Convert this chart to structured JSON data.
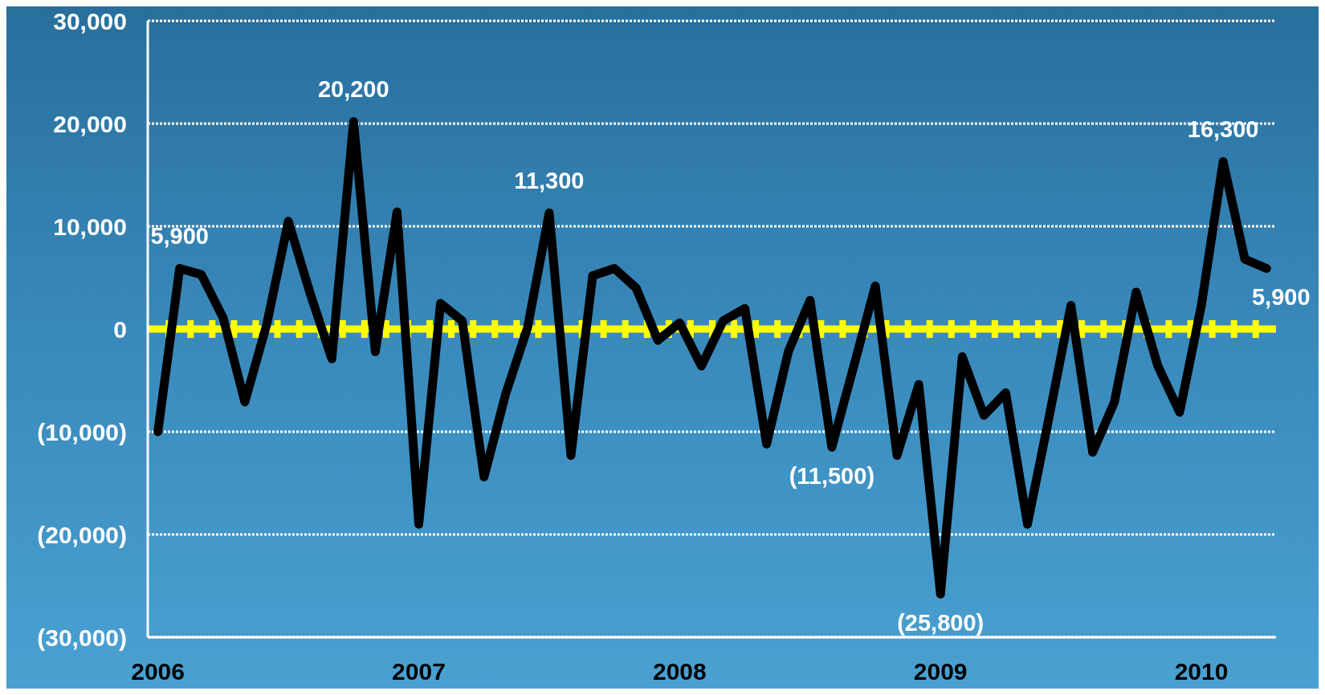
{
  "chart_data": {
    "type": "line",
    "x": [
      "2006-01",
      "2006-02",
      "2006-03",
      "2006-04",
      "2006-05",
      "2006-06",
      "2006-07",
      "2006-08",
      "2006-09",
      "2006-10",
      "2006-11",
      "2006-12",
      "2007-01",
      "2007-02",
      "2007-03",
      "2007-04",
      "2007-05",
      "2007-06",
      "2007-07",
      "2007-08",
      "2007-09",
      "2007-10",
      "2007-11",
      "2007-12",
      "2008-01",
      "2008-02",
      "2008-03",
      "2008-04",
      "2008-05",
      "2008-06",
      "2008-07",
      "2008-08",
      "2008-09",
      "2008-10",
      "2008-11",
      "2008-12",
      "2009-01",
      "2009-02",
      "2009-03",
      "2009-04",
      "2009-05",
      "2009-06",
      "2009-07",
      "2009-08",
      "2009-09",
      "2009-10",
      "2009-11",
      "2009-12",
      "2010-01",
      "2010-02",
      "2010-03",
      "2010-04"
    ],
    "series": [
      {
        "color": "#000000",
        "values": [
          -10000,
          5900,
          5300,
          1100,
          -7100,
          400,
          10500,
          3500,
          -2900,
          20200,
          -2200,
          11400,
          -19000,
          2500,
          800,
          -14400,
          -6300,
          100,
          11300,
          -12300,
          5200,
          5900,
          4000,
          -1100,
          600,
          -3600,
          800,
          2000,
          -11200,
          -2200,
          2800,
          -11500,
          -3700,
          4200,
          -12300,
          -5400,
          -25800,
          -2700,
          -8400,
          -6200,
          -19000,
          -8500,
          2300,
          -12000,
          -7100,
          3600,
          -3600,
          -8100,
          2300,
          16300,
          6800,
          5900
        ],
        "value_labels": [
          null,
          "5,900",
          null,
          null,
          null,
          null,
          null,
          null,
          null,
          "20,200",
          null,
          null,
          null,
          null,
          null,
          null,
          null,
          null,
          "11,300",
          null,
          null,
          null,
          null,
          null,
          null,
          null,
          null,
          null,
          null,
          null,
          null,
          "(11,500)",
          null,
          null,
          null,
          null,
          "(25,800)",
          null,
          null,
          null,
          null,
          null,
          null,
          null,
          null,
          null,
          null,
          null,
          null,
          "16,300",
          null,
          "5,900"
        ]
      }
    ],
    "xlim": [
      "2005-12-17",
      "2010-04-14"
    ],
    "xticks": [
      {
        "value": "2006-01",
        "label": "2006"
      },
      {
        "value": "2007-01",
        "label": "2007"
      },
      {
        "value": "2008-01",
        "label": "2008"
      },
      {
        "value": "2009-01",
        "label": "2009"
      },
      {
        "value": "2010-01",
        "label": "2010"
      }
    ],
    "ylim": [
      -30000,
      30000
    ],
    "yticks": [
      {
        "value": -30000,
        "label": "(30,000)"
      },
      {
        "value": -20000,
        "label": "(20,000)"
      },
      {
        "value": -10000,
        "label": "(10,000)"
      },
      0,
      {
        "value": 10000,
        "label": "10,000"
      },
      {
        "value": 20000,
        "label": "20,000"
      },
      {
        "value": 30000,
        "label": "30,000"
      }
    ],
    "grid": "y",
    "marker": "none",
    "line_style": "solid",
    "ref_lines": [
      {
        "axis": "y",
        "value": 0,
        "color": "#ffff00"
      }
    ]
  }
}
